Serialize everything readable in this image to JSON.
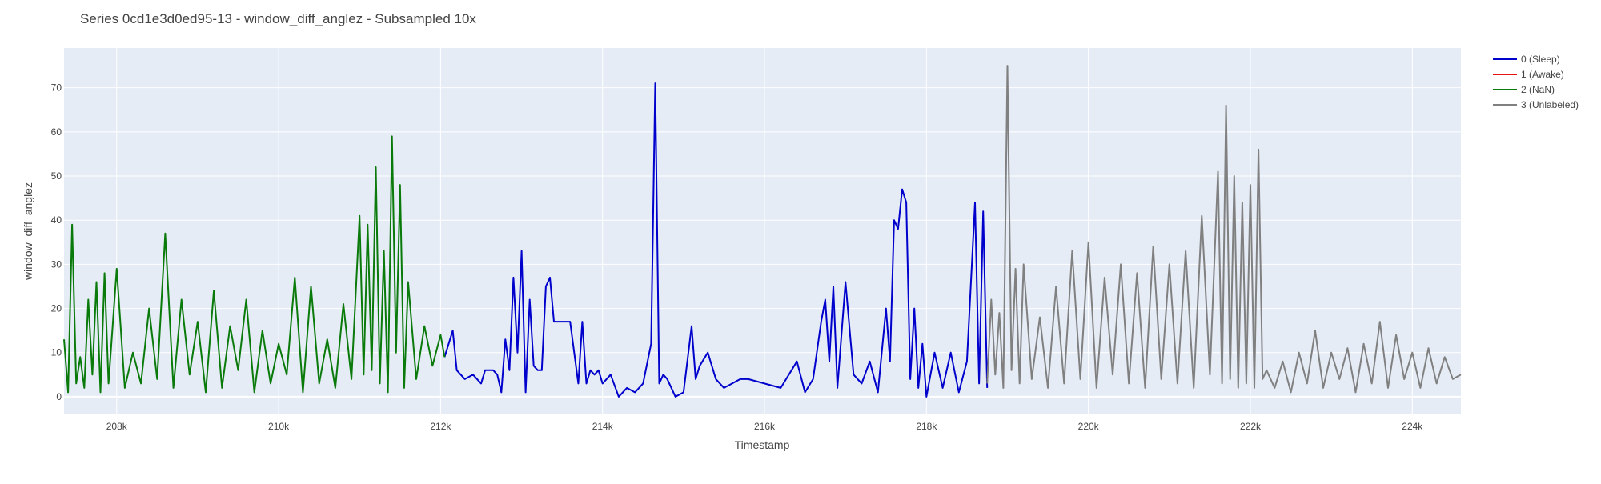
{
  "chart_data": {
    "type": "line",
    "title": "Series 0cd1e3d0ed95-13 - window_diff_anglez - Subsampled 10x",
    "xlabel": "Timestamp",
    "ylabel": "window_diff_anglez",
    "xlim": [
      207350,
      224600
    ],
    "ylim": [
      -4,
      79
    ],
    "x_ticks": [
      {
        "value": 208000,
        "label": "208k"
      },
      {
        "value": 210000,
        "label": "210k"
      },
      {
        "value": 212000,
        "label": "212k"
      },
      {
        "value": 214000,
        "label": "214k"
      },
      {
        "value": 216000,
        "label": "216k"
      },
      {
        "value": 218000,
        "label": "218k"
      },
      {
        "value": 220000,
        "label": "220k"
      },
      {
        "value": 222000,
        "label": "222k"
      },
      {
        "value": 224000,
        "label": "224k"
      }
    ],
    "y_ticks": [
      {
        "value": 0,
        "label": "0"
      },
      {
        "value": 10,
        "label": "10"
      },
      {
        "value": 20,
        "label": "20"
      },
      {
        "value": 30,
        "label": "30"
      },
      {
        "value": 40,
        "label": "40"
      },
      {
        "value": 50,
        "label": "50"
      },
      {
        "value": 60,
        "label": "60"
      },
      {
        "value": 70,
        "label": "70"
      }
    ],
    "grid": true,
    "legend_position": "top-right",
    "colors": {
      "plot_bg": "#E5ECF6",
      "grid": "#FFFFFF"
    },
    "series": [
      {
        "name": "0 (Sleep)",
        "color": "#0000CC",
        "x": [
          212050,
          212150,
          212200,
          212300,
          212400,
          212500,
          212550,
          212650,
          212700,
          212750,
          212800,
          212850,
          212900,
          212950,
          213000,
          213050,
          213100,
          213150,
          213200,
          213250,
          213300,
          213350,
          213400,
          213600,
          213700,
          213750,
          213800,
          213850,
          213900,
          213950,
          214000,
          214100,
          214200,
          214300,
          214400,
          214500,
          214600,
          214650,
          214700,
          214750,
          214800,
          214900,
          215000,
          215100,
          215150,
          215200,
          215300,
          215400,
          215500,
          215600,
          215700,
          215800,
          216000,
          216200,
          216400,
          216500,
          216600,
          216700,
          216750,
          216800,
          216850,
          216900,
          217000,
          217100,
          217200,
          217300,
          217400,
          217500,
          217550,
          217600,
          217650,
          217700,
          217750,
          217800,
          217850,
          217900,
          217950,
          218000,
          218100,
          218200,
          218300,
          218400,
          218500,
          218600,
          218650,
          218700,
          218750
        ],
        "y": [
          9,
          15,
          6,
          4,
          5,
          3,
          6,
          6,
          5,
          1,
          13,
          6,
          27,
          10,
          33,
          1,
          22,
          7,
          6,
          6,
          25,
          27,
          17,
          17,
          3,
          17,
          3,
          6,
          5,
          6,
          3,
          5,
          0,
          2,
          1,
          3,
          12,
          71,
          3,
          5,
          4,
          0,
          1,
          16,
          4,
          7,
          10,
          4,
          2,
          3,
          4,
          4,
          3,
          2,
          8,
          1,
          4,
          17,
          22,
          8,
          25,
          2,
          26,
          5,
          3,
          8,
          1,
          20,
          8,
          40,
          38,
          47,
          44,
          4,
          20,
          2,
          12,
          0,
          10,
          2,
          10,
          1,
          8,
          44,
          3,
          42,
          2
        ]
      },
      {
        "name": "1 (Awake)",
        "color": "#E81414",
        "x": [],
        "y": []
      },
      {
        "name": "2 (NaN)",
        "color": "#0A7A0A",
        "x": [
          207350,
          207400,
          207450,
          207500,
          207550,
          207600,
          207650,
          207700,
          207750,
          207800,
          207850,
          207900,
          208000,
          208100,
          208200,
          208300,
          208400,
          208500,
          208600,
          208700,
          208800,
          208900,
          209000,
          209100,
          209200,
          209300,
          209400,
          209500,
          209600,
          209700,
          209800,
          209900,
          210000,
          210100,
          210200,
          210300,
          210400,
          210500,
          210600,
          210700,
          210800,
          210900,
          211000,
          211050,
          211100,
          211150,
          211200,
          211250,
          211300,
          211350,
          211400,
          211450,
          211500,
          211550,
          211600,
          211700,
          211800,
          211900,
          212000,
          212050
        ],
        "y": [
          13,
          1,
          39,
          3,
          9,
          2,
          22,
          5,
          26,
          1,
          28,
          3,
          29,
          2,
          10,
          3,
          20,
          4,
          37,
          2,
          22,
          5,
          17,
          1,
          24,
          2,
          16,
          6,
          22,
          1,
          15,
          3,
          12,
          5,
          27,
          1,
          25,
          3,
          13,
          2,
          21,
          4,
          41,
          5,
          39,
          6,
          52,
          3,
          33,
          1,
          59,
          10,
          48,
          2,
          26,
          4,
          16,
          7,
          14,
          9
        ]
      },
      {
        "name": "3 (Unlabeled)",
        "color": "#808080",
        "x": [
          218750,
          218800,
          218850,
          218900,
          218950,
          219000,
          219050,
          219100,
          219150,
          219200,
          219300,
          219400,
          219500,
          219600,
          219700,
          219800,
          219900,
          220000,
          220100,
          220200,
          220300,
          220400,
          220500,
          220600,
          220700,
          220800,
          220900,
          221000,
          221100,
          221200,
          221300,
          221400,
          221500,
          221600,
          221650,
          221700,
          221750,
          221800,
          221850,
          221900,
          221950,
          222000,
          222050,
          222100,
          222150,
          222200,
          222300,
          222400,
          222500,
          222600,
          222700,
          222800,
          222900,
          223000,
          223100,
          223200,
          223300,
          223400,
          223500,
          223600,
          223700,
          223800,
          223900,
          224000,
          224100,
          224200,
          224300,
          224400,
          224500,
          224600
        ],
        "y": [
          3,
          22,
          5,
          19,
          2,
          75,
          6,
          29,
          3,
          30,
          4,
          18,
          2,
          25,
          3,
          33,
          4,
          35,
          2,
          27,
          5,
          30,
          3,
          28,
          2,
          34,
          4,
          30,
          3,
          33,
          2,
          41,
          5,
          51,
          3,
          66,
          4,
          50,
          2,
          44,
          3,
          48,
          2,
          56,
          4,
          6,
          2,
          8,
          1,
          10,
          3,
          15,
          2,
          10,
          4,
          11,
          1,
          12,
          3,
          17,
          2,
          14,
          4,
          10,
          2,
          11,
          3,
          9,
          4,
          5
        ]
      }
    ]
  }
}
